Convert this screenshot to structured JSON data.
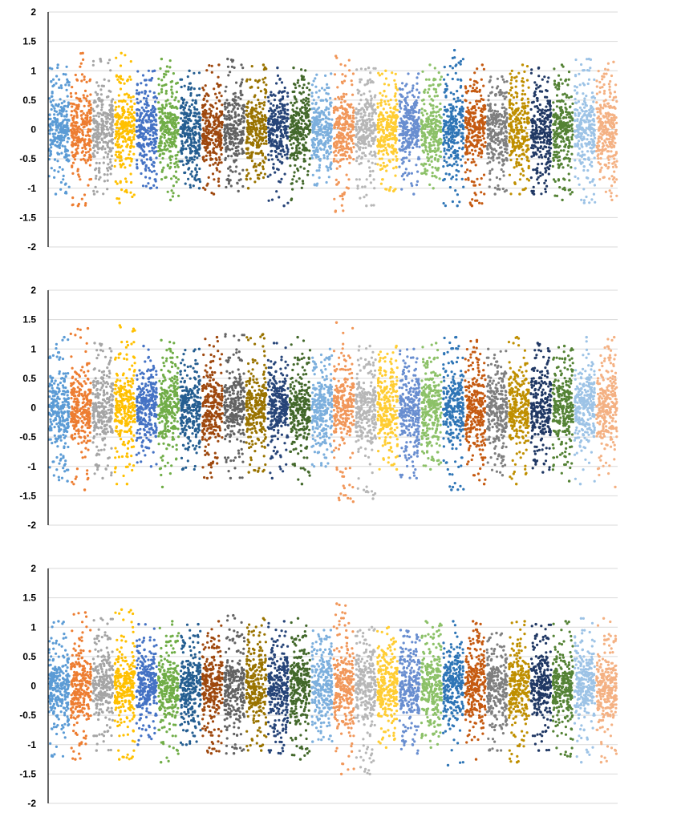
{
  "chart_data": [
    {
      "type": "scatter",
      "ylim": [
        -2,
        2
      ],
      "yticks": [
        2,
        1.5,
        1,
        0.5,
        0,
        -0.5,
        -1,
        -1.5,
        -2
      ],
      "ytick_labels": [
        "2",
        "1.5",
        "1",
        "0.5",
        "0",
        "-0.5",
        "-1",
        "-1.5",
        "-2"
      ],
      "grid": true,
      "groups": 26,
      "group_colors": [
        "#5b9bd5",
        "#ed7d31",
        "#a5a5a5",
        "#ffc000",
        "#4472c4",
        "#70ad47",
        "#255e91",
        "#9e480e",
        "#636363",
        "#997300",
        "#264478",
        "#43682b",
        "#7cafdd",
        "#f1975a",
        "#b7b7b7",
        "#ffcd33",
        "#698ed0",
        "#8cc168",
        "#2e75b6",
        "#c55a11",
        "#7f7f7f",
        "#bf8f00",
        "#203864",
        "#548235",
        "#9dc3e6",
        "#f4b183"
      ],
      "group_ranges": [
        [
          -1.1,
          1.1
        ],
        [
          -1.3,
          1.3
        ],
        [
          -1.1,
          1.2
        ],
        [
          -1.25,
          1.3
        ],
        [
          -1.0,
          1.0
        ],
        [
          -1.2,
          1.2
        ],
        [
          -1.0,
          1.0
        ],
        [
          -1.1,
          1.1
        ],
        [
          -1.05,
          1.2
        ],
        [
          -1.0,
          1.1
        ],
        [
          -1.3,
          1.05
        ],
        [
          -1.2,
          1.05
        ],
        [
          -0.95,
          0.95
        ],
        [
          -1.4,
          1.25
        ],
        [
          -1.3,
          1.05
        ],
        [
          -1.05,
          1.0
        ],
        [
          -1.1,
          0.95
        ],
        [
          -1.0,
          1.1
        ],
        [
          -1.3,
          1.35
        ],
        [
          -1.3,
          1.1
        ],
        [
          -1.1,
          0.9
        ],
        [
          -1.1,
          1.1
        ],
        [
          -1.1,
          1.05
        ],
        [
          -1.2,
          1.1
        ],
        [
          -1.25,
          1.2
        ],
        [
          -1.2,
          1.15
        ]
      ]
    },
    {
      "type": "scatter",
      "ylim": [
        -2,
        2
      ],
      "yticks": [
        2,
        1.5,
        1,
        0.5,
        0,
        -0.5,
        -1,
        -1.5,
        -2
      ],
      "ytick_labels": [
        "2",
        "1.5",
        "1",
        "0.5",
        "0",
        "-0.5",
        "-1",
        "-1.5",
        "-2"
      ],
      "grid": true,
      "groups": 26,
      "group_colors": [
        "#5b9bd5",
        "#ed7d31",
        "#a5a5a5",
        "#ffc000",
        "#4472c4",
        "#70ad47",
        "#255e91",
        "#9e480e",
        "#636363",
        "#997300",
        "#264478",
        "#43682b",
        "#7cafdd",
        "#f1975a",
        "#b7b7b7",
        "#ffcd33",
        "#698ed0",
        "#8cc168",
        "#2e75b6",
        "#c55a11",
        "#7f7f7f",
        "#bf8f00",
        "#203864",
        "#548235",
        "#9dc3e6",
        "#f4b183"
      ],
      "group_ranges": [
        [
          -1.25,
          1.2
        ],
        [
          -1.4,
          1.35
        ],
        [
          -1.2,
          1.1
        ],
        [
          -1.3,
          1.4
        ],
        [
          -1.0,
          1.05
        ],
        [
          -1.35,
          1.15
        ],
        [
          -1.05,
          1.0
        ],
        [
          -1.2,
          1.2
        ],
        [
          -1.2,
          1.25
        ],
        [
          -1.1,
          1.25
        ],
        [
          -1.2,
          1.1
        ],
        [
          -1.3,
          1.2
        ],
        [
          -1.0,
          1.0
        ],
        [
          -1.6,
          1.45
        ],
        [
          -1.55,
          1.05
        ],
        [
          -1.05,
          1.05
        ],
        [
          -1.2,
          1.0
        ],
        [
          -1.05,
          1.1
        ],
        [
          -1.4,
          1.2
        ],
        [
          -1.3,
          1.15
        ],
        [
          -1.15,
          1.0
        ],
        [
          -1.3,
          1.2
        ],
        [
          -1.1,
          1.1
        ],
        [
          -1.25,
          1.05
        ],
        [
          -1.3,
          1.2
        ],
        [
          -1.35,
          1.2
        ]
      ]
    },
    {
      "type": "scatter",
      "ylim": [
        -2,
        2
      ],
      "yticks": [
        2,
        1.5,
        1,
        0.5,
        0,
        -0.5,
        -1,
        -1.5,
        -2
      ],
      "ytick_labels": [
        "2",
        "1.5",
        "1",
        "0.5",
        "0",
        "-0.5",
        "-1",
        "-1.5",
        "-2"
      ],
      "grid": true,
      "groups": 26,
      "group_colors": [
        "#5b9bd5",
        "#ed7d31",
        "#a5a5a5",
        "#ffc000",
        "#4472c4",
        "#70ad47",
        "#255e91",
        "#9e480e",
        "#636363",
        "#997300",
        "#264478",
        "#43682b",
        "#7cafdd",
        "#f1975a",
        "#b7b7b7",
        "#ffcd33",
        "#698ed0",
        "#8cc168",
        "#2e75b6",
        "#c55a11",
        "#7f7f7f",
        "#bf8f00",
        "#203864",
        "#548235",
        "#9dc3e6",
        "#f4b183"
      ],
      "group_ranges": [
        [
          -1.2,
          1.1
        ],
        [
          -1.25,
          1.25
        ],
        [
          -1.1,
          1.15
        ],
        [
          -1.25,
          1.3
        ],
        [
          -1.0,
          1.05
        ],
        [
          -1.3,
          1.1
        ],
        [
          -1.0,
          1.05
        ],
        [
          -1.15,
          1.1
        ],
        [
          -1.15,
          1.2
        ],
        [
          -1.1,
          1.15
        ],
        [
          -1.15,
          1.1
        ],
        [
          -1.25,
          1.15
        ],
        [
          -0.95,
          0.95
        ],
        [
          -1.5,
          1.4
        ],
        [
          -1.5,
          1.0
        ],
        [
          -1.05,
          1.0
        ],
        [
          -1.15,
          0.95
        ],
        [
          -1.05,
          1.1
        ],
        [
          -1.35,
          1.1
        ],
        [
          -1.25,
          1.1
        ],
        [
          -1.1,
          0.9
        ],
        [
          -1.3,
          1.1
        ],
        [
          -1.1,
          1.05
        ],
        [
          -1.2,
          1.1
        ],
        [
          -1.3,
          1.15
        ],
        [
          -1.3,
          1.15
        ]
      ]
    }
  ]
}
